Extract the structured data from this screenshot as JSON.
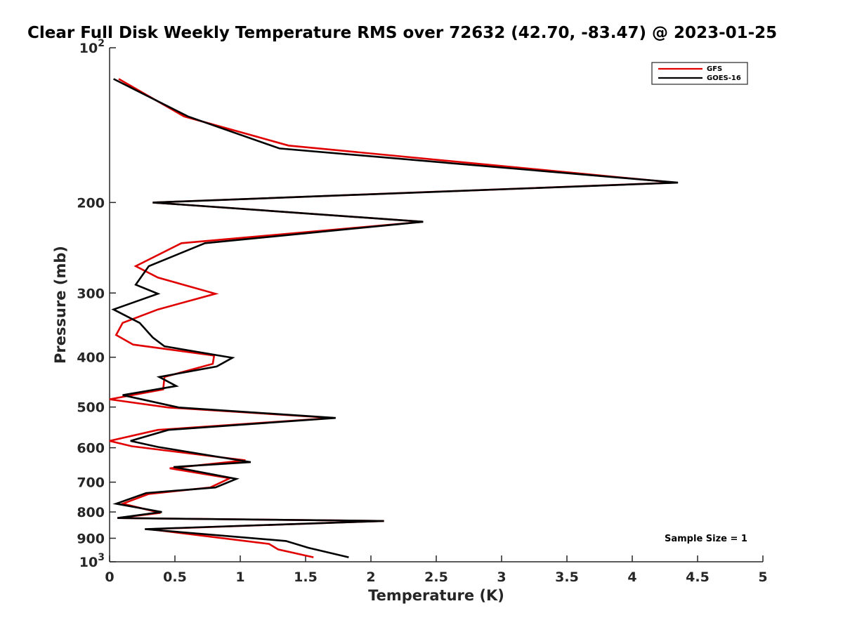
{
  "chart_data": {
    "type": "line",
    "title": "Clear Full Disk Weekly Temperature RMS over 72632 (42.70, -83.47) @ 2023-01-25",
    "xlabel": "Temperature (K)",
    "ylabel": "Pressure (mb)",
    "xlim": [
      0,
      5
    ],
    "ylim": [
      100,
      1000
    ],
    "y_scale": "log",
    "y_reversed": true,
    "grid": false,
    "legend_position": "top-right",
    "x_ticks": [
      "0",
      "0.5",
      "1",
      "1.5",
      "2",
      "2.5",
      "3",
      "3.5",
      "4",
      "4.5",
      "5"
    ],
    "x_tick_values": [
      0,
      0.5,
      1,
      1.5,
      2,
      2.5,
      3,
      3.5,
      4,
      4.5,
      5
    ],
    "y_tick_values": [
      100,
      200,
      300,
      400,
      500,
      600,
      700,
      800,
      900,
      1000
    ],
    "y_ticks": [
      {
        "value": 100,
        "base": "10",
        "exp": "2"
      },
      {
        "value": 200,
        "base": "200",
        "exp": ""
      },
      {
        "value": 300,
        "base": "300",
        "exp": ""
      },
      {
        "value": 400,
        "base": "400",
        "exp": ""
      },
      {
        "value": 500,
        "base": "500",
        "exp": ""
      },
      {
        "value": 600,
        "base": "600",
        "exp": ""
      },
      {
        "value": 700,
        "base": "700",
        "exp": ""
      },
      {
        "value": 800,
        "base": "800",
        "exp": ""
      },
      {
        "value": 900,
        "base": "900",
        "exp": ""
      },
      {
        "value": 1000,
        "base": "10",
        "exp": "3"
      }
    ],
    "series": [
      {
        "name": "GFS",
        "color": "#e00000",
        "points": [
          [
            0.07,
            115
          ],
          [
            0.57,
            136
          ],
          [
            1.37,
            155
          ],
          [
            4.33,
            183
          ],
          [
            0.33,
            200
          ],
          [
            2.4,
            218
          ],
          [
            0.55,
            240
          ],
          [
            0.2,
            266
          ],
          [
            0.37,
            280
          ],
          [
            0.81,
            301
          ],
          [
            0.37,
            323
          ],
          [
            0.1,
            343
          ],
          [
            0.05,
            362
          ],
          [
            0.18,
            378
          ],
          [
            0.8,
            397
          ],
          [
            0.79,
            412
          ],
          [
            0.42,
            437
          ],
          [
            0.41,
            462
          ],
          [
            0.0,
            483
          ],
          [
            0.45,
            501
          ],
          [
            1.71,
            525
          ],
          [
            0.37,
            554
          ],
          [
            0.0,
            582
          ],
          [
            0.17,
            596
          ],
          [
            1.04,
            635
          ],
          [
            0.46,
            658
          ],
          [
            0.92,
            688
          ],
          [
            0.77,
            717
          ],
          [
            0.3,
            738
          ],
          [
            0.1,
            771
          ],
          [
            0.39,
            803
          ],
          [
            0.06,
            822
          ],
          [
            2.1,
            833
          ],
          [
            0.3,
            864
          ],
          [
            1.22,
            923
          ],
          [
            1.29,
            946
          ],
          [
            1.56,
            980
          ]
        ]
      },
      {
        "name": "GOES-16",
        "color": "#000000",
        "points": [
          [
            0.03,
            115
          ],
          [
            0.6,
            136
          ],
          [
            1.3,
            157
          ],
          [
            4.35,
            183
          ],
          [
            0.33,
            200
          ],
          [
            2.4,
            218
          ],
          [
            0.73,
            240
          ],
          [
            0.3,
            266
          ],
          [
            0.2,
            289
          ],
          [
            0.37,
            301
          ],
          [
            0.03,
            323
          ],
          [
            0.23,
            343
          ],
          [
            0.33,
            366
          ],
          [
            0.42,
            381
          ],
          [
            0.94,
            401
          ],
          [
            0.82,
            417
          ],
          [
            0.38,
            437
          ],
          [
            0.51,
            455
          ],
          [
            0.1,
            474
          ],
          [
            0.53,
            501
          ],
          [
            1.73,
            525
          ],
          [
            0.45,
            554
          ],
          [
            0.16,
            582
          ],
          [
            0.37,
            598
          ],
          [
            1.08,
            640
          ],
          [
            0.49,
            654
          ],
          [
            0.97,
            690
          ],
          [
            0.81,
            717
          ],
          [
            0.28,
            735
          ],
          [
            0.05,
            771
          ],
          [
            0.4,
            800
          ],
          [
            0.06,
            822
          ],
          [
            2.1,
            833
          ],
          [
            0.27,
            864
          ],
          [
            1.35,
            911
          ],
          [
            1.52,
            939
          ],
          [
            1.83,
            980
          ]
        ]
      }
    ],
    "annotations": [
      {
        "text": "Sample Size = 1",
        "position": "bottom-right"
      }
    ]
  }
}
